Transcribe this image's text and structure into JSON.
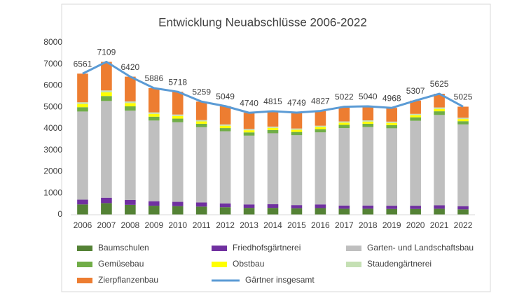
{
  "chart_data": {
    "type": "bar",
    "stacked": true,
    "title": "Entwicklung Neuabschlüsse 2006-2022",
    "categories": [
      "2006",
      "2007",
      "2008",
      "2009",
      "2010",
      "2011",
      "2012",
      "2013",
      "2014",
      "2015",
      "2016",
      "2017",
      "2018",
      "2019",
      "2020",
      "2021",
      "2022"
    ],
    "ylim": [
      0,
      8000
    ],
    "yticks": [
      0,
      1000,
      2000,
      3000,
      4000,
      5000,
      6000,
      7000,
      8000
    ],
    "grid": false,
    "series": [
      {
        "name": "Baumschulen",
        "color": "#548235",
        "values": [
          480,
          540,
          460,
          420,
          400,
          380,
          350,
          320,
          320,
          300,
          310,
          280,
          280,
          270,
          270,
          280,
          250
        ]
      },
      {
        "name": "Friedhofsgärtnerei",
        "color": "#7030a0",
        "values": [
          220,
          250,
          230,
          210,
          200,
          190,
          180,
          160,
          170,
          150,
          170,
          150,
          150,
          150,
          150,
          160,
          150
        ]
      },
      {
        "name": "Garten- und Landschaftsbau",
        "color": "#bfbfbf",
        "values": [
          4100,
          4500,
          4150,
          3750,
          3700,
          3500,
          3350,
          3200,
          3300,
          3250,
          3350,
          3600,
          3650,
          3600,
          3950,
          4200,
          3800
        ]
      },
      {
        "name": "Gemüsebau",
        "color": "#70ad47",
        "values": [
          200,
          230,
          200,
          180,
          170,
          160,
          150,
          150,
          150,
          150,
          150,
          150,
          150,
          150,
          160,
          170,
          150
        ]
      },
      {
        "name": "Obstbau",
        "color": "#ffff00",
        "values": [
          150,
          170,
          150,
          130,
          120,
          110,
          110,
          100,
          100,
          100,
          100,
          100,
          100,
          100,
          100,
          110,
          100
        ]
      },
      {
        "name": "Staudengärtnerei",
        "color": "#c5e0b4",
        "values": [
          80,
          90,
          80,
          70,
          70,
          60,
          60,
          60,
          60,
          60,
          60,
          60,
          60,
          60,
          60,
          70,
          60
        ]
      },
      {
        "name": "Zierpflanzenbau",
        "color": "#ed7d31",
        "values": [
          1331,
          1329,
          1150,
          1126,
          1058,
          859,
          849,
          750,
          715,
          739,
          687,
          682,
          650,
          638,
          617,
          635,
          515
        ]
      },
      {
        "name": "Gärtner insgesamt",
        "color": "#5b9bd5",
        "type": "line",
        "values": [
          6561,
          7109,
          6420,
          5886,
          5718,
          5259,
          5049,
          4740,
          4815,
          4749,
          4827,
          5022,
          5040,
          4968,
          5307,
          5625,
          5025
        ]
      }
    ]
  }
}
